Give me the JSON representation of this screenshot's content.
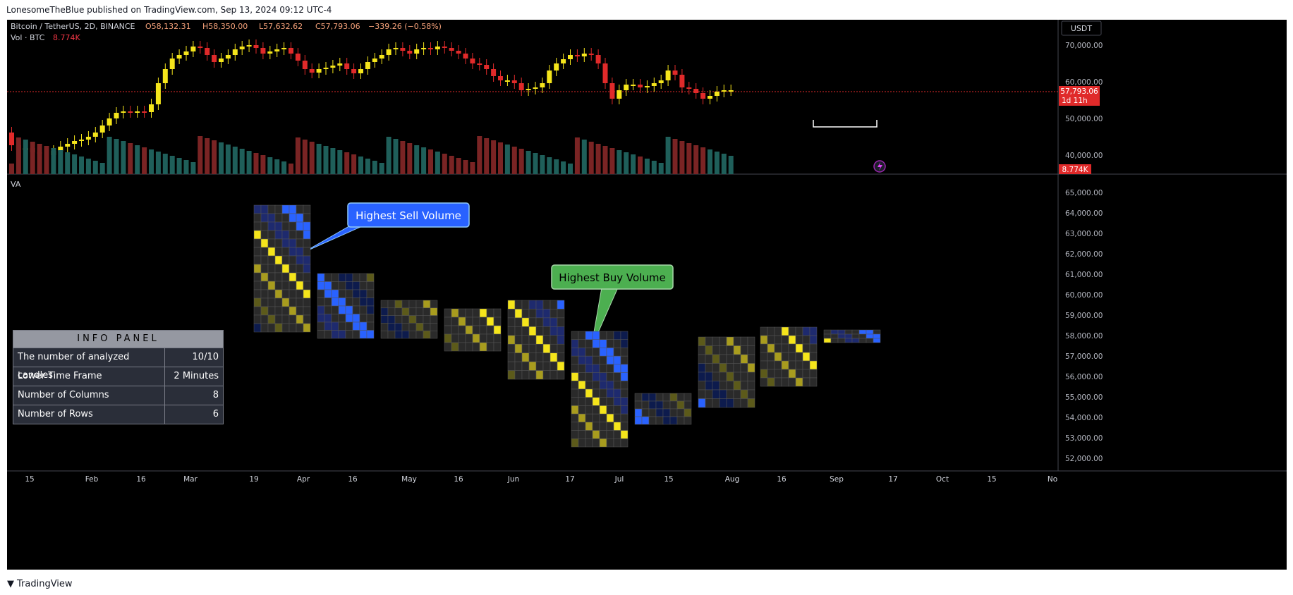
{
  "header": {
    "published": "LonesomeTheBlue published on TradingView.com, Sep 13, 2024 09:12 UTC-4"
  },
  "legend": {
    "symbol": "Bitcoin / TetherUS, 2D, BINANCE",
    "open": "O58,132.31",
    "high": "H58,350.00",
    "low": "L57,632.62",
    "close": "C57,793.06",
    "change": "−339.26 (−0.58%)",
    "vol_label": "Vol · BTC",
    "vol_value": "8.774K"
  },
  "pane2_label": "VA",
  "currency_button": "USDT",
  "price_badge": {
    "price": "57,793.06",
    "countdown": "1d 11h"
  },
  "vol_badge": "8.774K",
  "price_axis_top": [
    "70,000.00",
    "60,000.00",
    "50,000.00",
    "40,000.00"
  ],
  "price_axis_bottom": [
    "65,000.00",
    "64,000.00",
    "63,000.00",
    "62,000.00",
    "61,000.00",
    "60,000.00",
    "59,000.00",
    "58,000.00",
    "57,000.00",
    "56,000.00",
    "55,000.00",
    "54,000.00",
    "53,000.00",
    "52,000.00"
  ],
  "time_axis": [
    "15",
    "Feb",
    "16",
    "Mar",
    "19",
    "Apr",
    "16",
    "May",
    "16",
    "Jun",
    "17",
    "Jul",
    "15",
    "Aug",
    "16",
    "Sep",
    "17",
    "Oct",
    "15",
    "No"
  ],
  "callouts": {
    "sell": "Highest Sell Volume",
    "buy": "Highest Buy Volume"
  },
  "info_panel": {
    "title": "INFO PANEL",
    "rows": [
      {
        "label": "The number of analyzed candles",
        "value": "10/10"
      },
      {
        "label": "Lower Time Frame",
        "value": "2 Minutes"
      },
      {
        "label": "Number of Columns",
        "value": "8"
      },
      {
        "label": "Number of Rows",
        "value": "6"
      }
    ]
  },
  "footer": {
    "brand": "TradingView"
  },
  "colors": {
    "up": "#f5e51b",
    "down": "#e02a2a",
    "vol_up": "#1f5f5a",
    "vol_down": "#7a2424",
    "sell_callout": "#2962ff",
    "buy_callout": "#4caf50"
  }
}
